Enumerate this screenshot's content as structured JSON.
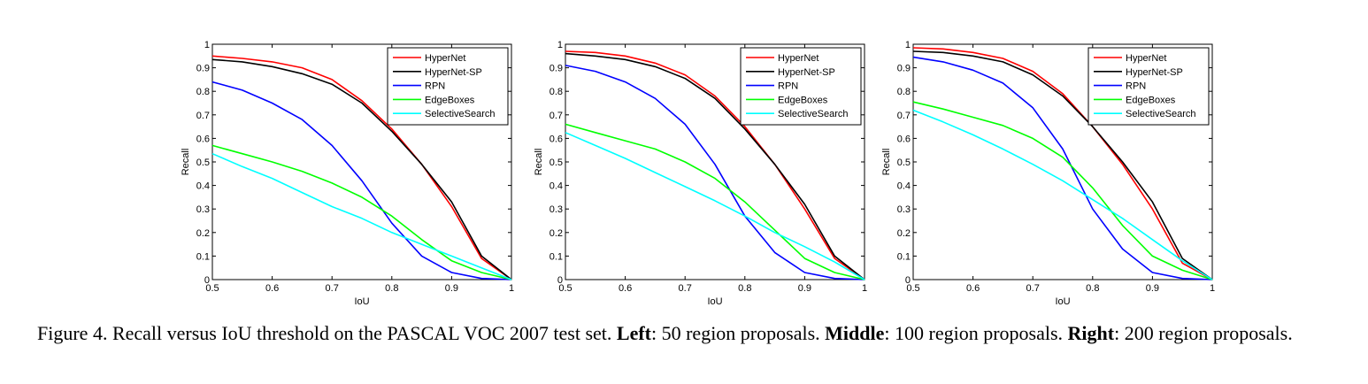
{
  "chart_data": [
    {
      "type": "line",
      "xlabel": "IoU",
      "ylabel": "Recall",
      "xlim": [
        0.5,
        1
      ],
      "ylim": [
        0,
        1
      ],
      "x_ticks": [
        "0.5",
        "0.6",
        "0.7",
        "0.8",
        "0.9",
        "1"
      ],
      "y_ticks": [
        "0",
        "0.1",
        "0.2",
        "0.3",
        "0.4",
        "0.5",
        "0.6",
        "0.7",
        "0.8",
        "0.9",
        "1"
      ],
      "legend_position": "top-right",
      "grid": false,
      "x": [
        0.5,
        0.55,
        0.6,
        0.65,
        0.7,
        0.75,
        0.8,
        0.85,
        0.9,
        0.95,
        1.0
      ],
      "series": [
        {
          "name": "HyperNet",
          "color": "#ff0000",
          "values": [
            0.95,
            0.94,
            0.925,
            0.9,
            0.85,
            0.76,
            0.64,
            0.49,
            0.31,
            0.09,
            0.0
          ]
        },
        {
          "name": "HyperNet-SP",
          "color": "#000000",
          "values": [
            0.935,
            0.925,
            0.905,
            0.875,
            0.83,
            0.75,
            0.63,
            0.49,
            0.33,
            0.1,
            0.0
          ]
        },
        {
          "name": "RPN",
          "color": "#0000ff",
          "values": [
            0.84,
            0.805,
            0.75,
            0.68,
            0.57,
            0.42,
            0.24,
            0.1,
            0.03,
            0.005,
            0.0
          ]
        },
        {
          "name": "EdgeBoxes",
          "color": "#00ff00",
          "values": [
            0.57,
            0.535,
            0.5,
            0.46,
            0.41,
            0.35,
            0.27,
            0.17,
            0.08,
            0.03,
            0.0
          ]
        },
        {
          "name": "SelectiveSearch",
          "color": "#00ffff",
          "values": [
            0.535,
            0.48,
            0.43,
            0.37,
            0.31,
            0.26,
            0.2,
            0.15,
            0.1,
            0.05,
            0.0
          ]
        }
      ]
    },
    {
      "type": "line",
      "xlabel": "IoU",
      "ylabel": "Recall",
      "xlim": [
        0.5,
        1
      ],
      "ylim": [
        0,
        1
      ],
      "x_ticks": [
        "0.5",
        "0.6",
        "0.7",
        "0.8",
        "0.9",
        "1"
      ],
      "y_ticks": [
        "0",
        "0.1",
        "0.2",
        "0.3",
        "0.4",
        "0.5",
        "0.6",
        "0.7",
        "0.8",
        "0.9",
        "1"
      ],
      "legend_position": "top-right",
      "grid": false,
      "x": [
        0.5,
        0.55,
        0.6,
        0.65,
        0.7,
        0.75,
        0.8,
        0.85,
        0.9,
        0.95,
        1.0
      ],
      "series": [
        {
          "name": "HyperNet",
          "color": "#ff0000",
          "values": [
            0.97,
            0.965,
            0.95,
            0.92,
            0.87,
            0.78,
            0.65,
            0.49,
            0.3,
            0.09,
            0.0
          ]
        },
        {
          "name": "HyperNet-SP",
          "color": "#000000",
          "values": [
            0.96,
            0.95,
            0.935,
            0.905,
            0.855,
            0.77,
            0.64,
            0.49,
            0.32,
            0.1,
            0.0
          ]
        },
        {
          "name": "RPN",
          "color": "#0000ff",
          "values": [
            0.91,
            0.885,
            0.84,
            0.77,
            0.66,
            0.49,
            0.27,
            0.115,
            0.03,
            0.005,
            0.0
          ]
        },
        {
          "name": "EdgeBoxes",
          "color": "#00ff00",
          "values": [
            0.66,
            0.625,
            0.59,
            0.555,
            0.5,
            0.43,
            0.33,
            0.21,
            0.09,
            0.03,
            0.0
          ]
        },
        {
          "name": "SelectiveSearch",
          "color": "#00ffff",
          "values": [
            0.625,
            0.57,
            0.515,
            0.455,
            0.395,
            0.335,
            0.27,
            0.2,
            0.14,
            0.075,
            0.0
          ]
        }
      ]
    },
    {
      "type": "line",
      "xlabel": "IoU",
      "ylabel": "Recall",
      "xlim": [
        0.5,
        1
      ],
      "ylim": [
        0,
        1
      ],
      "x_ticks": [
        "0.5",
        "0.6",
        "0.7",
        "0.8",
        "0.9",
        "1"
      ],
      "y_ticks": [
        "0",
        "0.1",
        "0.2",
        "0.3",
        "0.4",
        "0.5",
        "0.6",
        "0.7",
        "0.8",
        "0.9",
        "1"
      ],
      "legend_position": "top-right",
      "grid": false,
      "x": [
        0.5,
        0.55,
        0.6,
        0.65,
        0.7,
        0.75,
        0.8,
        0.85,
        0.9,
        0.95,
        1.0
      ],
      "series": [
        {
          "name": "HyperNet",
          "color": "#ff0000",
          "values": [
            0.985,
            0.98,
            0.965,
            0.94,
            0.885,
            0.79,
            0.65,
            0.49,
            0.3,
            0.07,
            0.0
          ]
        },
        {
          "name": "HyperNet-SP",
          "color": "#000000",
          "values": [
            0.97,
            0.965,
            0.95,
            0.925,
            0.87,
            0.78,
            0.65,
            0.5,
            0.33,
            0.09,
            0.0
          ]
        },
        {
          "name": "RPN",
          "color": "#0000ff",
          "values": [
            0.945,
            0.925,
            0.89,
            0.835,
            0.73,
            0.555,
            0.3,
            0.13,
            0.03,
            0.005,
            0.0
          ]
        },
        {
          "name": "EdgeBoxes",
          "color": "#00ff00",
          "values": [
            0.755,
            0.725,
            0.69,
            0.655,
            0.6,
            0.52,
            0.39,
            0.23,
            0.1,
            0.04,
            0.0
          ]
        },
        {
          "name": "SelectiveSearch",
          "color": "#00ffff",
          "values": [
            0.72,
            0.67,
            0.615,
            0.555,
            0.49,
            0.42,
            0.34,
            0.26,
            0.17,
            0.08,
            0.0
          ]
        }
      ]
    }
  ],
  "caption": {
    "figure_label": "Figure 4.",
    "main_text": " Recall versus IoU threshold on the PASCAL VOC 2007 test set. ",
    "left_label": "Left",
    "left_text": ": 50 region proposals. ",
    "middle_label": "Middle",
    "middle_text": ": 100 region proposals. ",
    "right_label": "Right",
    "right_text": ": 200 region proposals."
  }
}
